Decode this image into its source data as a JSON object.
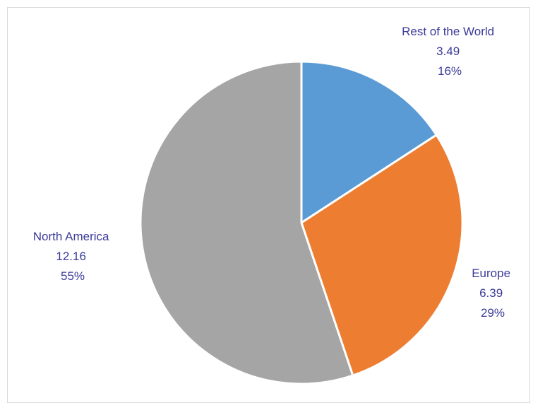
{
  "chart_data": {
    "type": "pie",
    "start_angle_deg": 0,
    "direction": "clockwise",
    "slices": [
      {
        "label": "Rest of the World",
        "value": 3.49,
        "percent_label": "16%",
        "value_label": "3.49",
        "color": "#5b9bd5"
      },
      {
        "label": "Europe",
        "value": 6.39,
        "percent_label": "29%",
        "value_label": "6.39",
        "color": "#ed7d31"
      },
      {
        "label": "North America",
        "value": 12.16,
        "percent_label": "55%",
        "value_label": "12.16",
        "color": "#a5a5a5"
      }
    ]
  }
}
